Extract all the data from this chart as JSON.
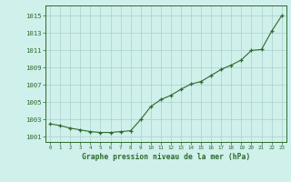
{
  "x": [
    0,
    1,
    2,
    3,
    4,
    5,
    6,
    7,
    8,
    9,
    10,
    11,
    12,
    13,
    14,
    15,
    16,
    17,
    18,
    19,
    20,
    21,
    22,
    23
  ],
  "y": [
    1002.5,
    1002.3,
    1002.0,
    1001.8,
    1001.6,
    1001.5,
    1001.5,
    1001.6,
    1001.7,
    1003.0,
    1004.5,
    1005.3,
    1005.8,
    1006.5,
    1007.1,
    1007.4,
    1008.1,
    1008.8,
    1009.3,
    1009.9,
    1011.0,
    1011.1,
    1013.2,
    1015.0
  ],
  "line_color": "#2d6a2d",
  "marker": "+",
  "bg_color": "#cff0eb",
  "grid_color": "#aacfca",
  "ylabel_values": [
    1001,
    1003,
    1005,
    1007,
    1009,
    1011,
    1013,
    1015
  ],
  "xlabel": "Graphe pression niveau de la mer (hPa)",
  "ylim": [
    1000.4,
    1016.2
  ],
  "xlim": [
    -0.5,
    23.5
  ],
  "axis_color": "#2d6a2d",
  "tick_color": "#2d6a2d"
}
